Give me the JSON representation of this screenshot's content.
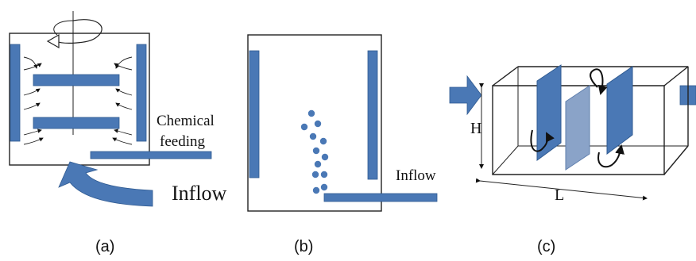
{
  "panels": {
    "a": {
      "caption": "(a)",
      "label_chemical_line1": "Chemical",
      "label_chemical_line2": "feeding",
      "label_inflow": "Inflow"
    },
    "b": {
      "caption": "(b)",
      "label_inflow": "Inflow"
    },
    "c": {
      "caption": "(c)",
      "label_height": "H",
      "label_length": "L"
    }
  },
  "colors": {
    "baffle_blue": "#4a78b5",
    "baffle_light": "#8aa3c8",
    "outline": "#222222"
  },
  "icons": [
    "rotation-arrow-icon",
    "flow-arrow-icon",
    "inflow-arrow-icon",
    "particle-dot-icon"
  ]
}
